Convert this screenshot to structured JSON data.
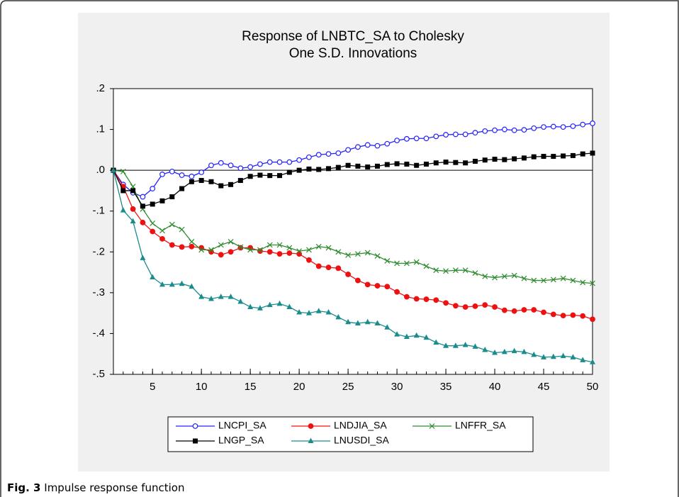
{
  "chart_data": {
    "type": "line",
    "title_lines": [
      "Response of LNBTC_SA to Cholesky",
      "One S.D. Innovations"
    ],
    "x": [
      1,
      2,
      3,
      4,
      5,
      6,
      7,
      8,
      9,
      10,
      11,
      12,
      13,
      14,
      15,
      16,
      17,
      18,
      19,
      20,
      21,
      22,
      23,
      24,
      25,
      26,
      27,
      28,
      29,
      30,
      31,
      32,
      33,
      34,
      35,
      36,
      37,
      38,
      39,
      40,
      41,
      42,
      43,
      44,
      45,
      46,
      47,
      48,
      49,
      50
    ],
    "xlim": [
      1,
      50
    ],
    "xticks": [
      5,
      10,
      15,
      20,
      25,
      30,
      35,
      40,
      45,
      50
    ],
    "ylim": [
      -0.5,
      0.2
    ],
    "yticks": [
      {
        "value": 0.2,
        "label": ".2"
      },
      {
        "value": 0.1,
        "label": ".1"
      },
      {
        "value": 0,
        "label": ".0"
      },
      {
        "value": -0.1,
        "label": "-.1"
      },
      {
        "value": -0.2,
        "label": "-.2"
      },
      {
        "value": -0.3,
        "label": "-.3"
      },
      {
        "value": -0.4,
        "label": "-.4"
      },
      {
        "value": -0.5,
        "label": "-.5"
      }
    ],
    "zero_line": true,
    "grid": false,
    "legend": "bottom",
    "series": [
      {
        "name": "LNCPI_SA",
        "color": "#2323ff",
        "marker": "circle-open",
        "values": [
          0,
          -0.035,
          -0.055,
          -0.065,
          -0.045,
          -0.01,
          -0.003,
          -0.012,
          -0.015,
          -0.005,
          0.012,
          0.018,
          0.012,
          0.005,
          0.008,
          0.015,
          0.02,
          0.02,
          0.02,
          0.025,
          0.032,
          0.038,
          0.04,
          0.042,
          0.05,
          0.057,
          0.062,
          0.06,
          0.065,
          0.073,
          0.077,
          0.078,
          0.078,
          0.083,
          0.087,
          0.088,
          0.088,
          0.092,
          0.096,
          0.098,
          0.1,
          0.098,
          0.099,
          0.103,
          0.106,
          0.107,
          0.106,
          0.108,
          0.112,
          0.115
        ]
      },
      {
        "name": "LNDJIA_SA",
        "color": "#ee1111",
        "marker": "circle",
        "values": [
          0,
          -0.04,
          -0.095,
          -0.128,
          -0.15,
          -0.168,
          -0.183,
          -0.188,
          -0.187,
          -0.19,
          -0.2,
          -0.207,
          -0.2,
          -0.19,
          -0.19,
          -0.198,
          -0.2,
          -0.205,
          -0.203,
          -0.205,
          -0.22,
          -0.235,
          -0.238,
          -0.24,
          -0.255,
          -0.27,
          -0.28,
          -0.283,
          -0.285,
          -0.298,
          -0.31,
          -0.315,
          -0.316,
          -0.318,
          -0.325,
          -0.332,
          -0.335,
          -0.333,
          -0.33,
          -0.335,
          -0.343,
          -0.345,
          -0.342,
          -0.342,
          -0.348,
          -0.353,
          -0.356,
          -0.355,
          -0.357,
          -0.365
        ]
      },
      {
        "name": "LNFFR_SA",
        "color": "#2e8b2e",
        "marker": "x",
        "values": [
          0,
          -0.003,
          -0.04,
          -0.095,
          -0.13,
          -0.148,
          -0.133,
          -0.145,
          -0.175,
          -0.195,
          -0.195,
          -0.183,
          -0.175,
          -0.188,
          -0.195,
          -0.195,
          -0.183,
          -0.183,
          -0.19,
          -0.198,
          -0.195,
          -0.187,
          -0.19,
          -0.2,
          -0.208,
          -0.205,
          -0.202,
          -0.21,
          -0.222,
          -0.228,
          -0.228,
          -0.225,
          -0.235,
          -0.245,
          -0.247,
          -0.245,
          -0.245,
          -0.252,
          -0.26,
          -0.263,
          -0.26,
          -0.258,
          -0.265,
          -0.27,
          -0.27,
          -0.268,
          -0.265,
          -0.27,
          -0.275,
          -0.277
        ]
      },
      {
        "name": "LNGP_SA",
        "color": "#000000",
        "marker": "square",
        "values": [
          0,
          -0.05,
          -0.05,
          -0.088,
          -0.083,
          -0.075,
          -0.065,
          -0.045,
          -0.028,
          -0.025,
          -0.028,
          -0.038,
          -0.035,
          -0.025,
          -0.015,
          -0.012,
          -0.013,
          -0.013,
          -0.005,
          0.0,
          0.003,
          0.002,
          0.004,
          0.007,
          0.012,
          0.01,
          0.008,
          0.01,
          0.014,
          0.016,
          0.015,
          0.012,
          0.015,
          0.018,
          0.02,
          0.019,
          0.018,
          0.022,
          0.025,
          0.027,
          0.026,
          0.028,
          0.03,
          0.033,
          0.034,
          0.034,
          0.035,
          0.036,
          0.04,
          0.042
        ]
      },
      {
        "name": "LNUSDI_SA",
        "color": "#1a8c8c",
        "marker": "triangle",
        "values": [
          0,
          -0.098,
          -0.125,
          -0.215,
          -0.262,
          -0.28,
          -0.28,
          -0.278,
          -0.285,
          -0.31,
          -0.315,
          -0.31,
          -0.31,
          -0.322,
          -0.335,
          -0.338,
          -0.33,
          -0.327,
          -0.335,
          -0.348,
          -0.35,
          -0.345,
          -0.348,
          -0.36,
          -0.372,
          -0.375,
          -0.372,
          -0.375,
          -0.385,
          -0.402,
          -0.408,
          -0.405,
          -0.41,
          -0.422,
          -0.43,
          -0.43,
          -0.428,
          -0.432,
          -0.44,
          -0.447,
          -0.445,
          -0.443,
          -0.445,
          -0.452,
          -0.458,
          -0.457,
          -0.455,
          -0.458,
          -0.465,
          -0.47
        ]
      }
    ]
  },
  "caption": {
    "label": "Fig. 3",
    "text": "Impulse response function"
  }
}
